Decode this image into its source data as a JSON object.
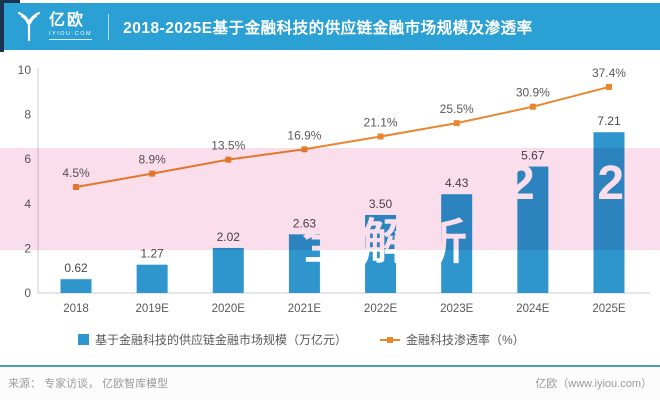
{
  "header": {
    "logo_text": "亿欧",
    "logo_sub": "IYIOU·COM",
    "title": "2018-2025E基于金融科技的供应链金融市场规模及渗透率"
  },
  "chart_data": {
    "type": "bar",
    "subtype": "combo-bar-line",
    "title": "2018-2025E基于金融科技的供应链金融市场规模及渗透率",
    "categories": [
      "2018",
      "2019E",
      "2020E",
      "2021E",
      "2022E",
      "2023E",
      "2024E",
      "2025E"
    ],
    "series": [
      {
        "name": "基于金融科技的供应链金融市场规模（万亿元）",
        "type": "bar",
        "color": "#2e96cc",
        "values": [
          0.62,
          1.27,
          2.02,
          2.63,
          3.5,
          4.43,
          5.67,
          7.21
        ],
        "labels": [
          "0.62",
          "1.27",
          "2.02",
          "2.63",
          "3.50",
          "4.43",
          "5.67",
          "7.21"
        ]
      },
      {
        "name": "金融科技渗透率（%）",
        "type": "line",
        "color": "#e8872f",
        "values": [
          4.5,
          8.9,
          13.5,
          16.9,
          21.1,
          25.5,
          30.9,
          37.4
        ],
        "labels": [
          "4.5%",
          "8.9%",
          "13.5%",
          "16.9%",
          "21.1%",
          "25.5%",
          "30.9%",
          "37.4%"
        ]
      }
    ],
    "y_axis": {
      "min": 0,
      "max": 10,
      "step": 2,
      "ticks": [
        0,
        2,
        4,
        6,
        8,
        10
      ]
    },
    "grid": false,
    "legend_position": "bottom"
  },
  "watermark": {
    "band_color": "#fadeec",
    "line1_fragment": "202",
    "line2_fragment": "全解析"
  },
  "footer": {
    "source": "来源：  专家访谈，  亿欧智库模型",
    "credit": "亿欧（www.iyiou.com）"
  }
}
